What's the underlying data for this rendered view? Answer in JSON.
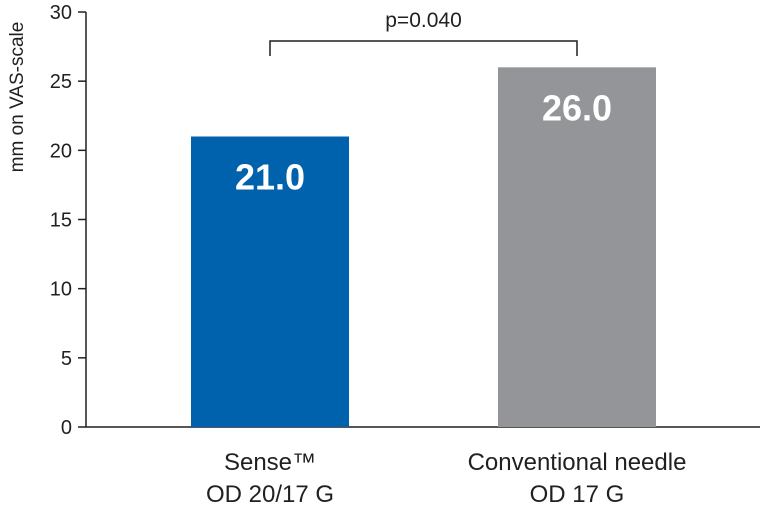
{
  "chart_data": {
    "type": "bar",
    "categories": [
      [
        "Sense™",
        "OD 20/17 G"
      ],
      [
        "Conventional needle",
        "OD 17 G"
      ]
    ],
    "values": [
      21.0,
      26.0
    ],
    "data_labels": [
      "21.0",
      "26.0"
    ],
    "colors": [
      "#0062ad",
      "#939598"
    ],
    "ylabel": "mm on VAS-scale",
    "xlabel": "",
    "title": "",
    "ylim": [
      0,
      30
    ],
    "yticks": [
      0,
      5,
      10,
      15,
      20,
      25,
      30
    ],
    "grid": false,
    "legend": "none",
    "annotations": [
      {
        "text": "p=0.040",
        "between": [
          0,
          1
        ],
        "type": "significance-bracket"
      }
    ]
  }
}
